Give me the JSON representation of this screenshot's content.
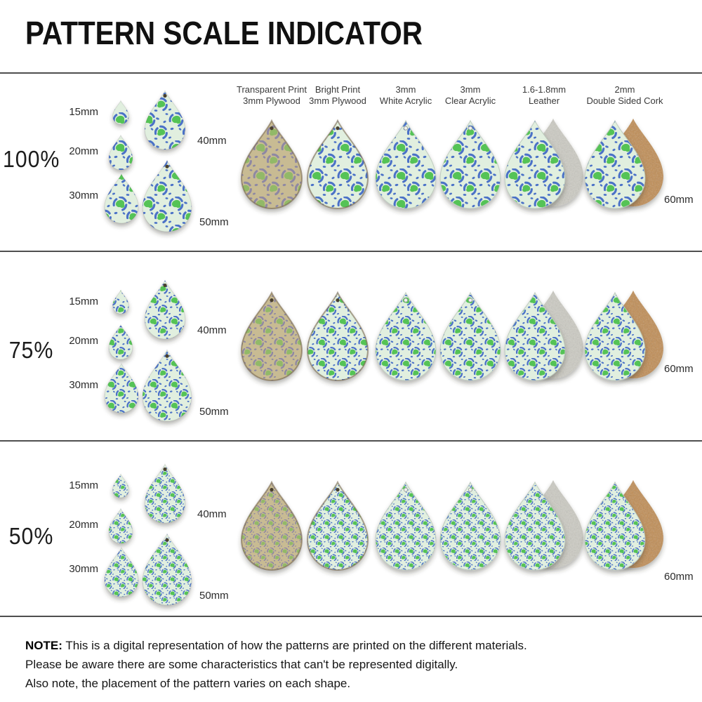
{
  "title": "PATTERN SCALE INDICATOR",
  "columns": [
    {
      "label_line1": "Transparent Print",
      "label_line2": "3mm Plywood"
    },
    {
      "label_line1": "Bright Print",
      "label_line2": "3mm Plywood"
    },
    {
      "label_line1": "3mm",
      "label_line2": "White Acrylic"
    },
    {
      "label_line1": "3mm",
      "label_line2": "Clear Acrylic"
    },
    {
      "label_line1": "1.6-1.8mm",
      "label_line2": "Leather"
    },
    {
      "label_line1": "2mm",
      "label_line2": "Double Sided Cork"
    }
  ],
  "size_labels": {
    "s15": "15mm",
    "s20": "20mm",
    "s30": "30mm",
    "s40": "40mm",
    "s50": "50mm",
    "s60": "60mm"
  },
  "rows": [
    {
      "scale_label": "100%",
      "pattern_scale": 1.0
    },
    {
      "scale_label": "75%",
      "pattern_scale": 0.75
    },
    {
      "scale_label": "50%",
      "pattern_scale": 0.5
    }
  ],
  "note": {
    "label": "NOTE:",
    "line1": "This is a digital representation of how the patterns are printed on the different materials.",
    "line2": "Please be aware there are some characteristics that can't be represented digitally.",
    "line3": "Also note, the placement of the pattern varies on each shape."
  },
  "colors": {
    "pattern_bg_mint": "#e1efdf",
    "pattern_spot_green": "#55c356",
    "pattern_ring_blue": "#4b72c7",
    "plywood_tan": "#c8bb93",
    "plywood_spot_green": "#92b967",
    "plywood_ring_gray": "#8e88a3",
    "leather_gray": "#cccbc3",
    "cork_tan": "#c08d55",
    "divider_gray": "#4f4f4f"
  }
}
